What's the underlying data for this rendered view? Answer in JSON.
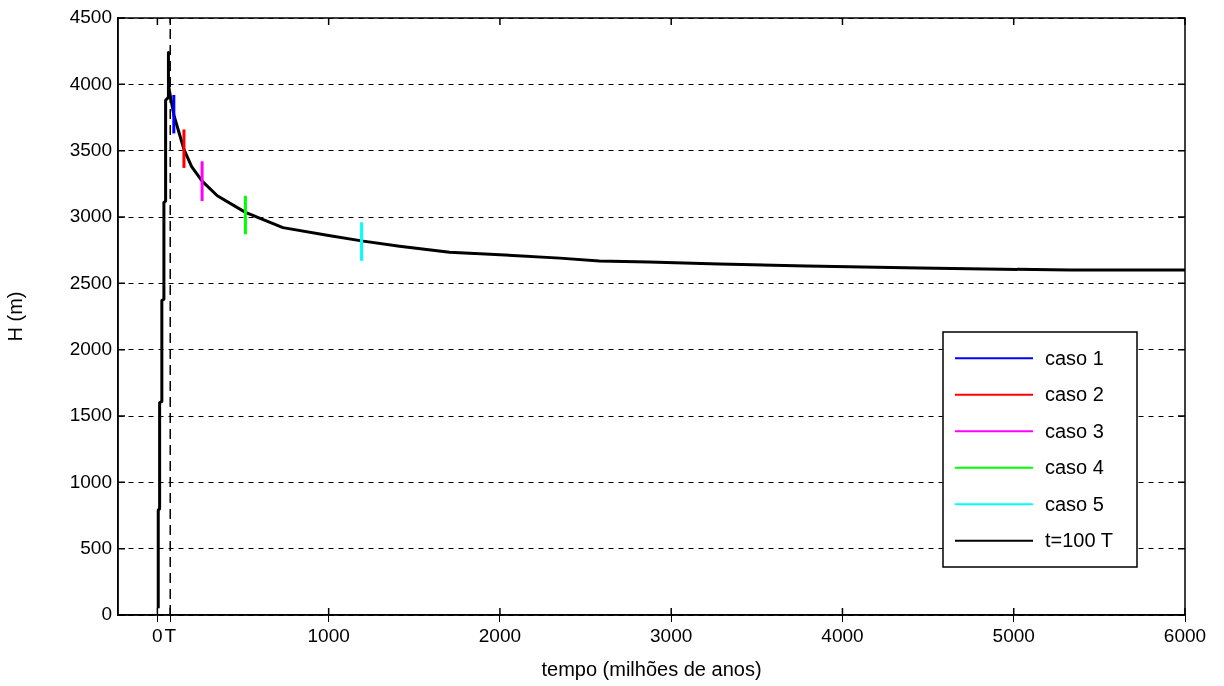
{
  "chart_data": {
    "type": "line",
    "xlabel": "tempo (milhões de anos)",
    "ylabel": "H (m)",
    "xlim": [
      -230,
      6000
    ],
    "xticks": [
      0,
      {
        "value": 75,
        "label": "T"
      },
      1000,
      2000,
      3000,
      4000,
      5000,
      6000
    ],
    "ylim": [
      0,
      4500
    ],
    "yticks": [
      0,
      500,
      1000,
      1500,
      2000,
      2500,
      3000,
      3500,
      4000,
      4500
    ],
    "grid": "y",
    "legend": "bottom right",
    "marker": "none",
    "line_style": "solid",
    "ref_lines": [
      {
        "axis": "x",
        "value": 75,
        "color": "#000000",
        "line_style": "dashed"
      }
    ],
    "series": [
      {
        "name": "caso 1",
        "color": "#0000ff",
        "x": [
          96,
          96
        ],
        "values": [
          3630,
          3920
        ]
      },
      {
        "name": "caso 2",
        "color": "#ff0000",
        "x": [
          155,
          155
        ],
        "values": [
          3370,
          3660
        ]
      },
      {
        "name": "caso 3",
        "color": "#ff00ff",
        "x": [
          261,
          261
        ],
        "values": [
          3120,
          3420
        ]
      },
      {
        "name": "caso 4",
        "color": "#00ff00",
        "x": [
          514,
          514
        ],
        "values": [
          2870,
          3160
        ]
      },
      {
        "name": "caso 5",
        "color": "#00ffff",
        "x": [
          1192,
          1192
        ],
        "values": [
          2670,
          2960
        ]
      },
      {
        "name": "t=100 T",
        "color": "#000000",
        "x": [
          5,
          5,
          13,
          13,
          26,
          26,
          38,
          38,
          48,
          48,
          63,
          63,
          66,
          73,
          96,
          130,
          155,
          200,
          261,
          350,
          514,
          733,
          1000,
          1192,
          1414,
          1706,
          2000,
          2350,
          2580,
          2870,
          3280,
          3790,
          4450,
          5330,
          6000
        ],
        "values": [
          50,
          790,
          800,
          1600,
          1610,
          2370,
          2380,
          3110,
          3120,
          3880,
          3900,
          4240,
          4000,
          3930,
          3770,
          3620,
          3510,
          3380,
          3270,
          3160,
          3035,
          2920,
          2860,
          2820,
          2780,
          2735,
          2715,
          2690,
          2668,
          2660,
          2645,
          2630,
          2615,
          2600,
          2600
        ]
      }
    ]
  }
}
